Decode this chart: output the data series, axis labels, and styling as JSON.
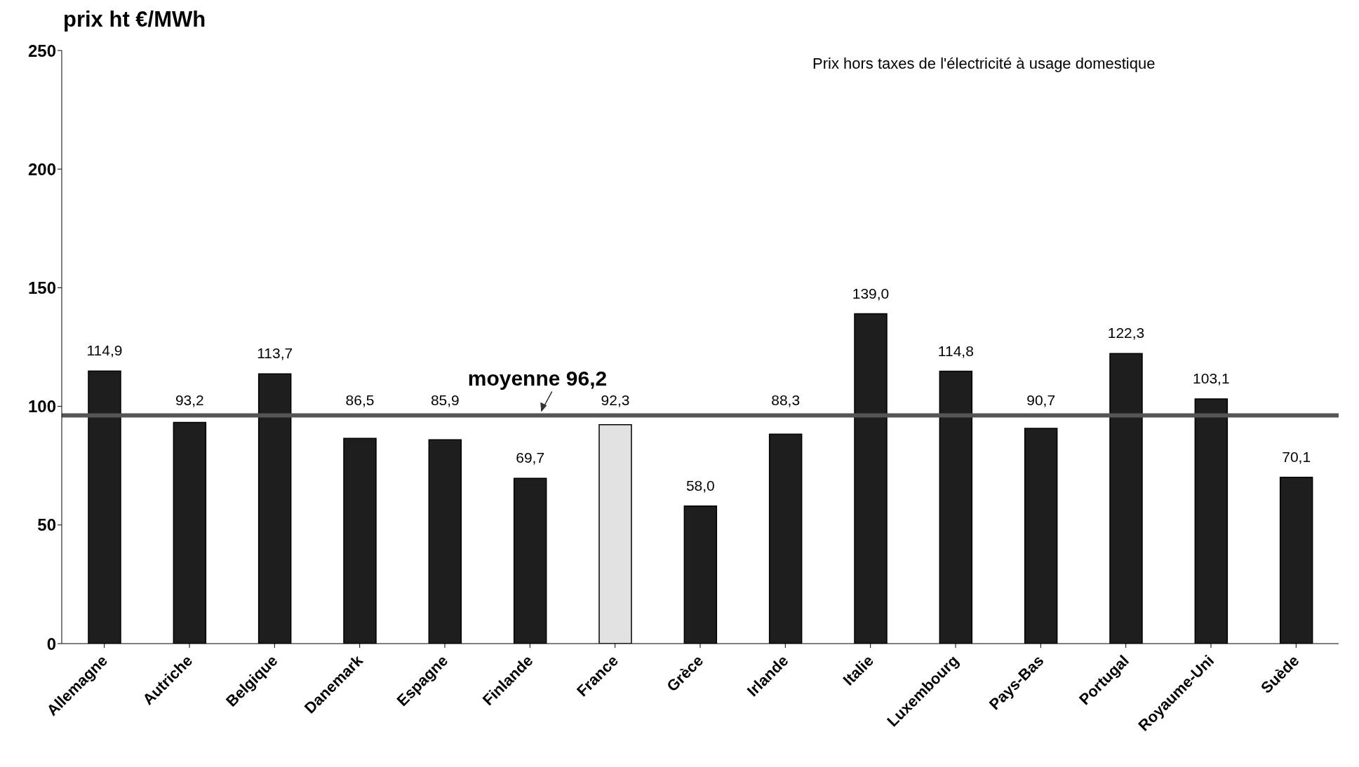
{
  "chart_data": {
    "type": "bar",
    "subtitle": "Prix hors taxes de l'électricité à usage domestique",
    "ylabel": "prix ht  €/MWh",
    "categories": [
      "Allemagne",
      "Autriche",
      "Belgique",
      "Danemark",
      "Espagne",
      "Finlande",
      "France",
      "Grèce",
      "Irlande",
      "Italie",
      "Luxembourg",
      "Pays-Bas",
      "Portugal",
      "Royaume-Uni",
      "Suède"
    ],
    "values": [
      114.9,
      93.2,
      113.7,
      86.5,
      85.9,
      69.7,
      92.3,
      58.0,
      88.3,
      139.0,
      114.8,
      90.7,
      122.3,
      103.1,
      70.1
    ],
    "value_labels": [
      "114,9",
      "93,2",
      "113,7",
      "86,5",
      "85,9",
      "69,7",
      "92,3",
      "58,0",
      "88,3",
      "139,0",
      "114,8",
      "90,7",
      "122,3",
      "103,1",
      "70,1"
    ],
    "colors": [
      "#1e1e1e",
      "#1e1e1e",
      "#1e1e1e",
      "#1e1e1e",
      "#1e1e1e",
      "#1e1e1e",
      "#e2e2e2",
      "#1e1e1e",
      "#1e1e1e",
      "#1e1e1e",
      "#1e1e1e",
      "#1e1e1e",
      "#1e1e1e",
      "#1e1e1e",
      "#1e1e1e"
    ],
    "ylim": [
      0,
      250
    ],
    "yticks": [
      0,
      50,
      100,
      150,
      200,
      250
    ],
    "grid": false,
    "legend": false,
    "ref_lines": [
      {
        "axis": "y",
        "value": 96.2,
        "label": "moyenne 96,2",
        "color": "#555555"
      }
    ]
  }
}
